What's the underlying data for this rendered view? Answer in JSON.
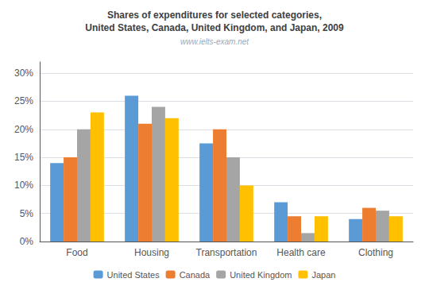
{
  "chart_data": {
    "type": "bar",
    "title": "Shares of expenditures for selected categories,\nUnited States, Canada, United Kingdom, and Japan, 2009",
    "subtitle": "www.ielts-exam.net",
    "categories": [
      "Food",
      "Housing",
      "Transportation",
      "Health care",
      "Clothing"
    ],
    "series": [
      {
        "name": "United States",
        "color": "#5B9BD5",
        "values": [
          14,
          26,
          17.5,
          7,
          4
        ]
      },
      {
        "name": "Canada",
        "color": "#ED7D31",
        "values": [
          15,
          21,
          20,
          4.5,
          6
        ]
      },
      {
        "name": "United Kingdom",
        "color": "#A5A5A5",
        "values": [
          20,
          24,
          15,
          1.5,
          5.5
        ]
      },
      {
        "name": "Japan",
        "color": "#FFC000",
        "values": [
          23,
          22,
          10,
          4.5,
          4.5
        ]
      }
    ],
    "ylim": [
      0,
      32
    ],
    "yticks": [
      {
        "value": 0,
        "label": "0%"
      },
      {
        "value": 5,
        "label": "5%"
      },
      {
        "value": 10,
        "label": "10%"
      },
      {
        "value": 15,
        "label": "15%"
      },
      {
        "value": 20,
        "label": "20%"
      },
      {
        "value": 25,
        "label": "25%"
      },
      {
        "value": 30,
        "label": "30%"
      }
    ],
    "grid": true,
    "legend": "bottom"
  }
}
